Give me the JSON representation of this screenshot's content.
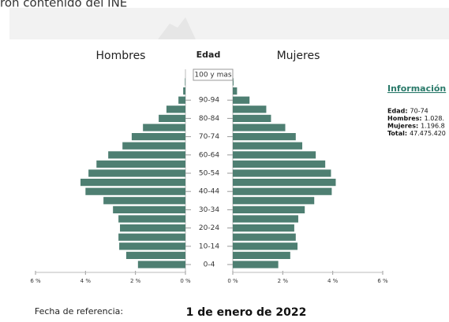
{
  "header": {
    "text": "ron contenido del INE"
  },
  "chart_data": {
    "type": "pyramid",
    "title_center": "Edad",
    "categories": [
      "0-4",
      null,
      "10-14",
      null,
      "20-24",
      null,
      "30-34",
      null,
      "40-44",
      null,
      "50-54",
      null,
      "60-64",
      null,
      "70-74",
      null,
      "80-84",
      null,
      "90-94",
      null,
      "100 y mas"
    ],
    "series": [
      {
        "name": "Hombres",
        "color": "#4e7f72",
        "values": [
          1.9,
          2.37,
          2.65,
          2.68,
          2.62,
          2.68,
          2.9,
          3.28,
          4.0,
          4.2,
          3.88,
          3.56,
          3.09,
          2.52,
          2.15,
          1.7,
          1.07,
          0.76,
          0.28,
          0.09,
          0.02
        ]
      },
      {
        "name": "Mujeres",
        "color": "#4e7f72",
        "values": [
          1.82,
          2.3,
          2.59,
          2.52,
          2.46,
          2.62,
          2.88,
          3.26,
          3.96,
          4.12,
          3.93,
          3.7,
          3.32,
          2.78,
          2.52,
          2.1,
          1.53,
          1.34,
          0.67,
          0.17,
          0.03
        ]
      }
    ],
    "xlim": [
      0,
      6
    ],
    "xticks": [
      {
        "value": 6,
        "label": "6 %"
      },
      {
        "value": 4,
        "label": "4 %"
      },
      {
        "value": 2,
        "label": "2 %"
      },
      {
        "value": 0,
        "label": "0 %"
      }
    ]
  },
  "info": {
    "title": "Información",
    "rows": [
      [
        "Edad:",
        "70-74"
      ],
      [
        "Hombres:",
        "1.028."
      ],
      [
        "Mujeres:",
        "1.196.8"
      ],
      [
        "Total:",
        "47.475.420"
      ]
    ]
  },
  "footer": {
    "label": "Fecha de referencia:",
    "date": "1 de enero de 2022"
  }
}
